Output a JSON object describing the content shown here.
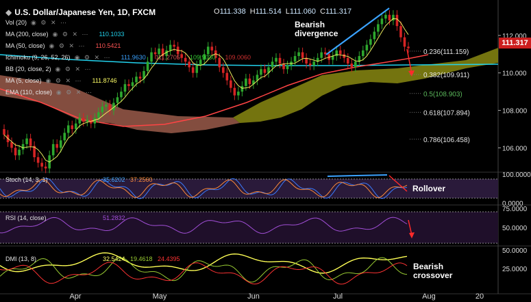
{
  "header": {
    "title": "U.S. Dollar/Japanese Yen, 1D, FXCM",
    "ohlc": [
      {
        "k": "O",
        "v": "111.338"
      },
      {
        "k": "H",
        "v": "111.514"
      },
      {
        "k": "L",
        "v": "111.060"
      },
      {
        "k": "C",
        "v": "111.317"
      }
    ],
    "current_price": "111.317"
  },
  "indicators": [
    {
      "label": "Vol (20)",
      "values": []
    },
    {
      "label": "MA (200, close)",
      "values": [
        {
          "v": "110.1033",
          "color": "#22d3ee"
        }
      ]
    },
    {
      "label": "MA (50, close)",
      "values": [
        {
          "v": "110.5421",
          "color": "#ff5555"
        }
      ]
    },
    {
      "label": "Ichimoku (9, 26, 52, 26)",
      "values": [
        {
          "v": "111.9630",
          "color": "#3ba3ff"
        },
        {
          "v": "111.2705",
          "color": "#d05555"
        },
        {
          "v": "109.9030",
          "color": "#33cc33"
        },
        {
          "v": "109.0060",
          "color": "#d03030"
        }
      ]
    },
    {
      "label": "BB (20, close, 2)",
      "values": []
    },
    {
      "label": "MA (5, close)",
      "values": [
        {
          "v": "111.8746",
          "color": "#ffff66"
        }
      ]
    },
    {
      "label": "EMA (110, close)",
      "values": []
    }
  ],
  "annotations": {
    "bearish_divergence": "Bearish\ndivergence",
    "rollover": "Rollover",
    "bearish_crossover": "Bearish\ncrossover"
  },
  "fib_levels": [
    {
      "label": "0.236(111.159)",
      "price": 111.159,
      "color": "#e6e6e6"
    },
    {
      "label": "0.382(109.911)",
      "price": 109.911,
      "color": "#e6e6e6"
    },
    {
      "label": "0.5(108.903)",
      "price": 108.903,
      "color": "#5bb85b"
    },
    {
      "label": "0.618(107.894)",
      "price": 107.894,
      "color": "#e6e6e6"
    },
    {
      "label": "0.786(106.458)",
      "price": 106.458,
      "color": "#e6e6e6"
    }
  ],
  "panels": {
    "stoch": {
      "label": "Stoch (14, 3, 1)",
      "values": [
        {
          "v": "35.6202",
          "color": "#3ba3ff"
        },
        {
          "v": "37.2560",
          "color": "#ff8c3a"
        }
      ],
      "ticks": [
        "100.0000",
        "0.0000"
      ]
    },
    "rsi": {
      "label": "RSI (14, close)",
      "values": [
        {
          "v": "51.2832",
          "color": "#a24fd8"
        }
      ],
      "ticks": [
        "75.0000",
        "50.0000"
      ]
    },
    "dmi": {
      "label": "DMI (13, 8)",
      "values": [
        {
          "v": "32.5424",
          "color": "#ffff66"
        },
        {
          "v": "19.4618",
          "color": "#9acd32"
        },
        {
          "v": "24.4395",
          "color": "#ff3333"
        }
      ],
      "ticks": [
        "50.0000",
        "25.0000"
      ]
    }
  },
  "x_axis_labels": [
    "Apr",
    "May",
    "Jun",
    "Jul",
    "Aug",
    "20"
  ],
  "colors": {
    "up": "#2ea82e",
    "down": "#d62424",
    "cloud_bull": "#8a8a1a",
    "cloud_bear": "#9a5b4a",
    "ma200": "#22d3ee",
    "ma50": "#ff4444",
    "ma5": "#ffff66"
  },
  "chart_data": {
    "type": "candlestick",
    "title": "U.S. Dollar/Japanese Yen, 1D, FXCM",
    "y_axis_ticks": [
      "112.000",
      "110.000",
      "108.000",
      "106.000"
    ],
    "ylim": [
      104.7,
      113.6
    ],
    "x_labels": [
      "Apr",
      "May",
      "Jun",
      "Jul",
      "Aug",
      "20"
    ],
    "closes": [
      106.7,
      106.3,
      106.0,
      105.6,
      105.9,
      106.2,
      106.5,
      106.1,
      105.5,
      105.2,
      105.0,
      104.9,
      105.6,
      106.2,
      106.0,
      106.4,
      106.8,
      107.2,
      107.0,
      107.3,
      107.6,
      107.4,
      107.5,
      107.3,
      107.6,
      107.9,
      108.2,
      108.3,
      108.0,
      108.4,
      108.7,
      109.0,
      109.4,
      109.3,
      109.5,
      109.8,
      109.7,
      110.1,
      110.6,
      111.1,
      111.0,
      111.3,
      110.9,
      111.2,
      111.5,
      111.4,
      111.0,
      110.8,
      110.6,
      110.3,
      110.0,
      110.4,
      110.7,
      111.0,
      111.4,
      111.2,
      110.8,
      110.3,
      110.0,
      109.6,
      109.2,
      108.8,
      109.0,
      109.3,
      109.7,
      109.4,
      109.6,
      109.9,
      110.2,
      110.0,
      110.3,
      110.6,
      110.8,
      110.5,
      110.2,
      110.4,
      110.6,
      110.9,
      111.1,
      110.8,
      110.5,
      110.4,
      110.6,
      110.8,
      111.1,
      111.0,
      110.7,
      110.9,
      111.2,
      111.0,
      110.8,
      110.5,
      110.3,
      110.6,
      110.9,
      111.2,
      111.5,
      111.8,
      112.2,
      112.6,
      112.9,
      113.1,
      112.8,
      113.1,
      112.5,
      111.9,
      111.4,
      111.317
    ],
    "ma200": [
      111.0,
      110.3,
      110.1
    ],
    "ma50": [
      106.0,
      110.5
    ],
    "fib_levels": [
      111.159,
      109.911,
      108.903,
      107.894,
      106.458
    ]
  }
}
